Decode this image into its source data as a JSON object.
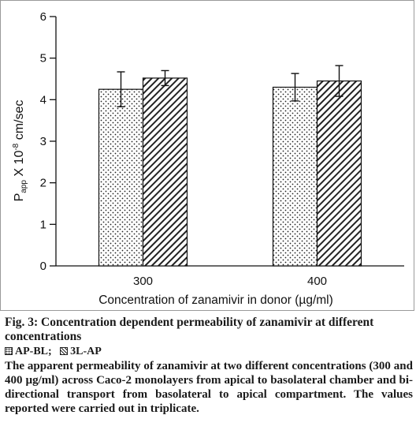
{
  "chart_data": {
    "type": "bar",
    "categories": [
      "300",
      "400"
    ],
    "series": [
      {
        "name": "AP-BL",
        "values": [
          4.25,
          4.3
        ],
        "errors": [
          0.42,
          0.33
        ],
        "pattern": "dots"
      },
      {
        "name": "BL-AP",
        "values": [
          4.52,
          4.45
        ],
        "errors": [
          0.18,
          0.37
        ],
        "pattern": "hatch"
      }
    ],
    "ylim": [
      0,
      6
    ],
    "yticks": [
      "0",
      "1",
      "2",
      "3",
      "4",
      "5",
      "6"
    ],
    "ylabel_main": "P",
    "ylabel_sub": "app",
    "ylabel_mid": " X 10",
    "ylabel_sup": "-8",
    "ylabel_unit": " cm/sec",
    "xlabel": "Concentration of zanamivir in donor (µg/ml)",
    "grid": false
  },
  "caption": {
    "title": "Fig. 3: Concentration dependent permeability of zanamivir at different concentrations",
    "legend_ap": "AP-BL;",
    "legend_bl": "3L-AP",
    "body": "The apparent permeability of zanamivir at two different concentrations (300 and 400 µg/ml) across Caco-2 monolayers from apical to basolateral chamber and bi-directional transport from basolateral to apical compartment. The values reported were carried out in triplicate."
  },
  "colors": {
    "ink": "#111111",
    "border": "#9a9a9a"
  }
}
